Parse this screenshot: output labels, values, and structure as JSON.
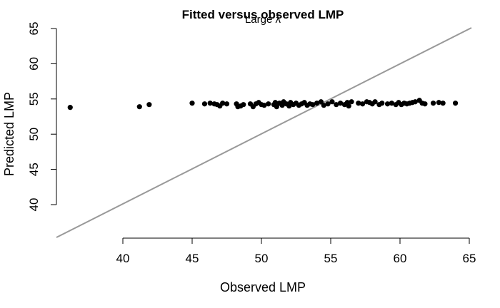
{
  "chart_data": {
    "type": "scatter",
    "title": "Fitted versus observed LMP",
    "subtitle": "Large λ",
    "xlabel": "Observed LMP",
    "ylabel": "Predicted LMP",
    "xticks": [
      40,
      45,
      50,
      55,
      60,
      65
    ],
    "yticks": [
      40,
      45,
      50,
      55,
      60,
      65
    ],
    "point_color": "#000000",
    "reference_line": {
      "type": "identity",
      "color": "#999999"
    },
    "points": [
      [
        36.2,
        53.8
      ],
      [
        41.2,
        53.9
      ],
      [
        41.9,
        54.2
      ],
      [
        45.0,
        54.4
      ],
      [
        45.9,
        54.3
      ],
      [
        46.3,
        54.4
      ],
      [
        46.6,
        54.3
      ],
      [
        46.8,
        54.2
      ],
      [
        47.0,
        54.0
      ],
      [
        47.2,
        54.4
      ],
      [
        47.5,
        54.3
      ],
      [
        48.2,
        54.3
      ],
      [
        48.3,
        53.9
      ],
      [
        48.5,
        54.0
      ],
      [
        48.7,
        54.2
      ],
      [
        49.2,
        54.3
      ],
      [
        49.4,
        53.9
      ],
      [
        49.6,
        54.3
      ],
      [
        49.8,
        54.5
      ],
      [
        50.0,
        54.2
      ],
      [
        50.2,
        54.1
      ],
      [
        50.5,
        54.3
      ],
      [
        50.9,
        54.2
      ],
      [
        51.0,
        54.5
      ],
      [
        51.1,
        53.9
      ],
      [
        51.3,
        54.4
      ],
      [
        51.5,
        54.1
      ],
      [
        51.6,
        54.6
      ],
      [
        51.8,
        54.3
      ],
      [
        52.0,
        54.0
      ],
      [
        52.1,
        54.5
      ],
      [
        52.3,
        54.2
      ],
      [
        52.5,
        54.4
      ],
      [
        52.7,
        54.1
      ],
      [
        52.9,
        54.3
      ],
      [
        53.1,
        54.5
      ],
      [
        53.3,
        54.1
      ],
      [
        53.5,
        54.3
      ],
      [
        53.7,
        54.2
      ],
      [
        54.0,
        54.4
      ],
      [
        54.3,
        54.6
      ],
      [
        54.5,
        54.1
      ],
      [
        54.8,
        54.3
      ],
      [
        55.1,
        54.6
      ],
      [
        55.4,
        54.2
      ],
      [
        55.7,
        54.4
      ],
      [
        56.0,
        54.2
      ],
      [
        56.2,
        54.5
      ],
      [
        56.5,
        54.6
      ],
      [
        56.3,
        54.0
      ],
      [
        57.0,
        54.4
      ],
      [
        57.3,
        54.3
      ],
      [
        57.6,
        54.6
      ],
      [
        57.8,
        54.5
      ],
      [
        58.0,
        54.3
      ],
      [
        58.2,
        54.6
      ],
      [
        58.5,
        54.2
      ],
      [
        58.7,
        54.4
      ],
      [
        59.1,
        54.3
      ],
      [
        59.4,
        54.4
      ],
      [
        59.7,
        54.2
      ],
      [
        59.9,
        54.5
      ],
      [
        60.1,
        54.2
      ],
      [
        60.3,
        54.4
      ],
      [
        60.5,
        54.3
      ],
      [
        60.7,
        54.4
      ],
      [
        60.9,
        54.5
      ],
      [
        61.1,
        54.6
      ],
      [
        61.4,
        54.8
      ],
      [
        61.6,
        54.4
      ],
      [
        61.8,
        54.3
      ],
      [
        62.4,
        54.4
      ],
      [
        62.8,
        54.5
      ],
      [
        63.1,
        54.4
      ],
      [
        64.0,
        54.4
      ]
    ]
  }
}
